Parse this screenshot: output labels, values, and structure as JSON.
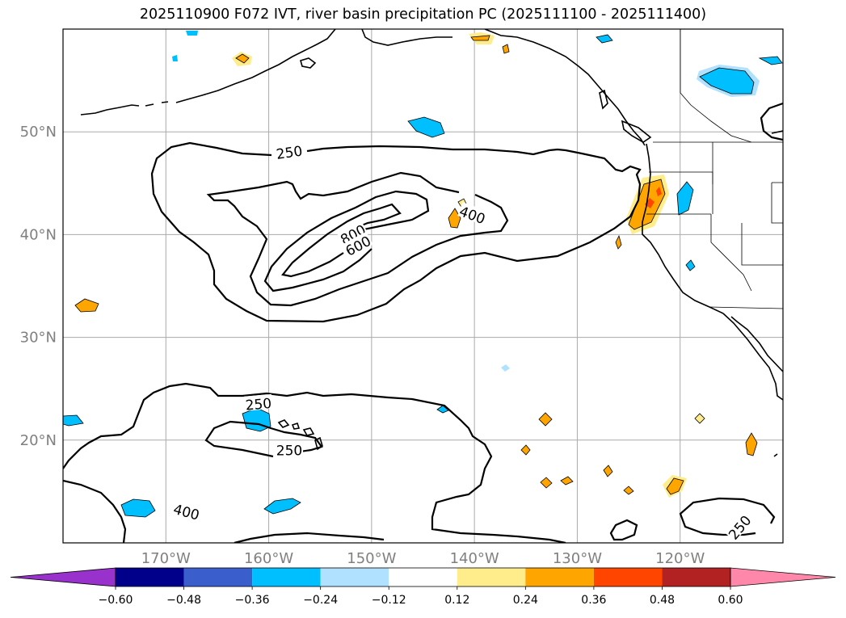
{
  "chart_data": {
    "type": "map",
    "title": "2025110900 F072 IVT, river basin precipitation PC (2025111100 - 2025111400)",
    "lon_range": [
      -180,
      -110
    ],
    "lat_range": [
      10,
      60
    ],
    "lat_ticks": [
      {
        "lat": 50,
        "label": "50°N"
      },
      {
        "lat": 40,
        "label": "40°N"
      },
      {
        "lat": 30,
        "label": "30°N"
      },
      {
        "lat": 20,
        "label": "20°N"
      }
    ],
    "lon_ticks": [
      {
        "lon": -170,
        "label": "170°W"
      },
      {
        "lon": -160,
        "label": "160°W"
      },
      {
        "lon": -150,
        "label": "150°W"
      },
      {
        "lon": -140,
        "label": "140°W"
      },
      {
        "lon": -130,
        "label": "130°W"
      },
      {
        "lon": -120,
        "label": "120°W"
      }
    ],
    "ivt_contour_levels": [
      250,
      400,
      600,
      800
    ],
    "contour_labels": [
      {
        "text": "250",
        "lon": -158,
        "lat": 48.0,
        "rot": -8
      },
      {
        "text": "400",
        "lon": -140.2,
        "lat": 41.9,
        "rot": 20
      },
      {
        "text": "800",
        "lon": -151.8,
        "lat": 40.0,
        "rot": -28
      },
      {
        "text": "600",
        "lon": -151.3,
        "lat": 38.9,
        "rot": -28
      },
      {
        "text": "250",
        "lon": -161.0,
        "lat": 23.5,
        "rot": -5
      },
      {
        "text": "250",
        "lon": -158.0,
        "lat": 19.0,
        "rot": 0
      },
      {
        "text": "400",
        "lon": -168.0,
        "lat": 13.0,
        "rot": 15
      },
      {
        "text": "250",
        "lon": -114.2,
        "lat": 11.5,
        "rot": -50
      }
    ],
    "colorbar": {
      "colors": [
        "#9932cc",
        "#00008b",
        "#3a5fcd",
        "#00bfff",
        "#b0e2ff",
        "#ffffff",
        "#ffec8b",
        "#ffa500",
        "#ff4500",
        "#b22222",
        "#ff88aa"
      ],
      "ticks": [
        "−0.60",
        "−0.48",
        "−0.36",
        "−0.24",
        "−0.12",
        "0.12",
        "0.24",
        "0.36",
        "0.48",
        "0.60"
      ],
      "tick_values": [
        -0.6,
        -0.48,
        -0.36,
        -0.24,
        -0.12,
        0.12,
        0.24,
        0.36,
        0.48,
        0.6
      ]
    }
  }
}
